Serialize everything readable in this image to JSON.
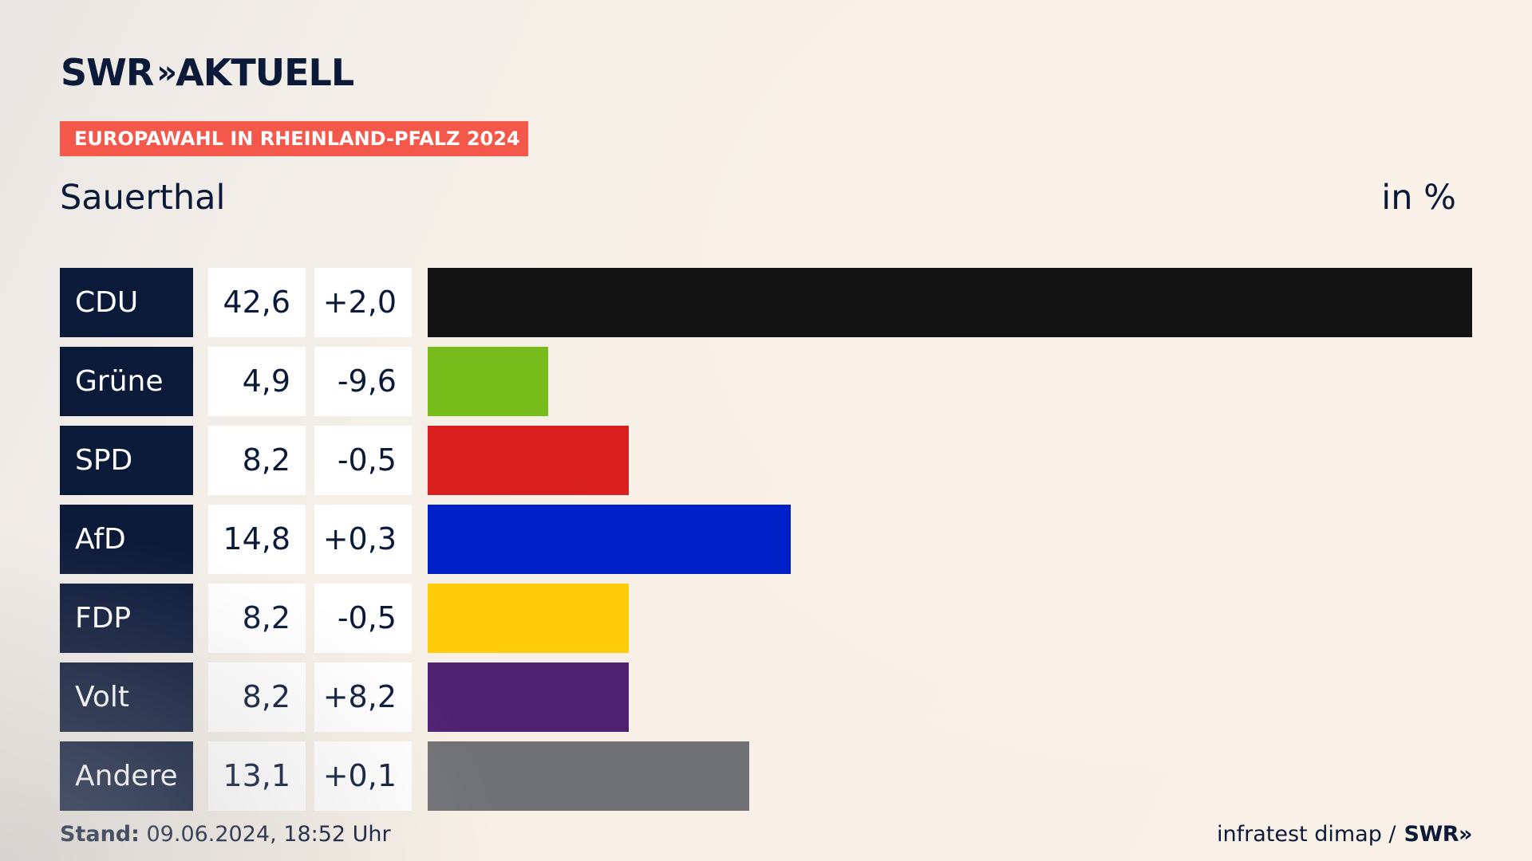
{
  "header": {
    "logo_text": "SWR",
    "logo_chevrons": "»",
    "logo_suffix": "AKTUELL",
    "tag": "EUROPAWAHL IN RHEINLAND-PFALZ 2024",
    "subtitle": "Sauerthal",
    "unit": "in %"
  },
  "footer": {
    "stand_label": "Stand:",
    "stand_value": " 09.06.2024, 18:52 Uhr",
    "source": "infratest dimap /",
    "source_logo": "SWR»"
  },
  "colors": {
    "background": "#f8f0e6",
    "navy": "#0c1a3a",
    "tag": "#f4584a"
  },
  "chart_data": {
    "type": "bar",
    "orientation": "horizontal",
    "title": "Sauerthal",
    "unit": "in %",
    "xlim": [
      0,
      42.6
    ],
    "categories": [
      "CDU",
      "Grüne",
      "SPD",
      "AfD",
      "FDP",
      "Volt",
      "Andere"
    ],
    "values": [
      42.6,
      4.9,
      8.2,
      14.8,
      8.2,
      8.2,
      13.1
    ],
    "value_labels": [
      "42,6",
      "4,9",
      "8,2",
      "14,8",
      "8,2",
      "8,2",
      "13,1"
    ],
    "changes": [
      2.0,
      -9.6,
      -0.5,
      0.3,
      -0.5,
      8.2,
      0.1
    ],
    "change_labels": [
      "+2,0",
      "-9,6",
      "-0,5",
      "+0,3",
      "-0,5",
      "+8,2",
      "+0,1"
    ],
    "bar_colors": [
      "#141414",
      "#78bc1b",
      "#d81f1e",
      "#0021c8",
      "#ffcc0a",
      "#4f2270",
      "#707173"
    ],
    "legend": "none",
    "grid": false
  }
}
